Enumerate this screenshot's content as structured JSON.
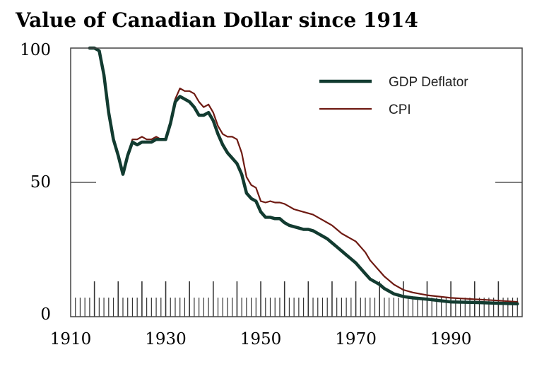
{
  "chart_data": {
    "type": "line",
    "title": "Value of Canadian Dollar since 1914",
    "xlabel": "",
    "ylabel": "",
    "xlim": [
      1910,
      2005
    ],
    "ylim": [
      0,
      100
    ],
    "x_ticks": [
      1910,
      1930,
      1950,
      1970,
      1990
    ],
    "y_ticks": [
      0,
      50,
      100
    ],
    "grid": false,
    "legend_position": "top-right",
    "series": [
      {
        "name": "GDP Deflator",
        "color": "#123b30",
        "points": [
          [
            1914,
            100
          ],
          [
            1915,
            100
          ],
          [
            1916,
            99
          ],
          [
            1917,
            90
          ],
          [
            1918,
            76
          ],
          [
            1919,
            66
          ],
          [
            1920,
            60
          ],
          [
            1921,
            53
          ],
          [
            1922,
            60
          ],
          [
            1923,
            65
          ],
          [
            1924,
            64
          ],
          [
            1925,
            65
          ],
          [
            1926,
            65
          ],
          [
            1927,
            65
          ],
          [
            1928,
            66
          ],
          [
            1929,
            66
          ],
          [
            1930,
            66
          ],
          [
            1931,
            72
          ],
          [
            1932,
            80
          ],
          [
            1933,
            82
          ],
          [
            1934,
            81
          ],
          [
            1935,
            80
          ],
          [
            1936,
            78
          ],
          [
            1937,
            75
          ],
          [
            1938,
            75
          ],
          [
            1939,
            76
          ],
          [
            1940,
            73
          ],
          [
            1941,
            68
          ],
          [
            1942,
            64
          ],
          [
            1943,
            61
          ],
          [
            1944,
            59
          ],
          [
            1945,
            57
          ],
          [
            1946,
            53
          ],
          [
            1947,
            46
          ],
          [
            1948,
            44
          ],
          [
            1949,
            43
          ],
          [
            1950,
            39
          ],
          [
            1951,
            37
          ],
          [
            1952,
            37
          ],
          [
            1953,
            36.5
          ],
          [
            1954,
            36.5
          ],
          [
            1955,
            35
          ],
          [
            1956,
            34
          ],
          [
            1957,
            33.5
          ],
          [
            1958,
            33
          ],
          [
            1959,
            32.5
          ],
          [
            1960,
            32.5
          ],
          [
            1961,
            32
          ],
          [
            1962,
            31
          ],
          [
            1963,
            30
          ],
          [
            1964,
            29
          ],
          [
            1965,
            27.5
          ],
          [
            1966,
            26
          ],
          [
            1967,
            24.5
          ],
          [
            1968,
            23
          ],
          [
            1969,
            21.5
          ],
          [
            1970,
            20
          ],
          [
            1971,
            18
          ],
          [
            1972,
            16
          ],
          [
            1973,
            14
          ],
          [
            1974,
            13
          ],
          [
            1975,
            12
          ],
          [
            1976,
            10.5
          ],
          [
            1977,
            9.5
          ],
          [
            1978,
            8.5
          ],
          [
            1979,
            8
          ],
          [
            1980,
            7.5
          ],
          [
            1982,
            7
          ],
          [
            1985,
            6.5
          ],
          [
            1990,
            5.5
          ],
          [
            1995,
            5.3
          ],
          [
            2000,
            5
          ],
          [
            2004,
            4.8
          ]
        ]
      },
      {
        "name": "CPI",
        "color": "#6e1a12",
        "points": [
          [
            1914,
            100
          ],
          [
            1915,
            100
          ],
          [
            1916,
            99
          ],
          [
            1917,
            90
          ],
          [
            1918,
            76
          ],
          [
            1919,
            66
          ],
          [
            1920,
            60
          ],
          [
            1921,
            53
          ],
          [
            1922,
            60
          ],
          [
            1923,
            66
          ],
          [
            1924,
            66
          ],
          [
            1925,
            67
          ],
          [
            1926,
            66
          ],
          [
            1927,
            66
          ],
          [
            1928,
            67
          ],
          [
            1929,
            66
          ],
          [
            1930,
            66
          ],
          [
            1931,
            72
          ],
          [
            1932,
            81
          ],
          [
            1933,
            85
          ],
          [
            1934,
            84
          ],
          [
            1935,
            84
          ],
          [
            1936,
            83
          ],
          [
            1937,
            80
          ],
          [
            1938,
            78
          ],
          [
            1939,
            79
          ],
          [
            1940,
            76
          ],
          [
            1941,
            71
          ],
          [
            1942,
            68
          ],
          [
            1943,
            67
          ],
          [
            1944,
            67
          ],
          [
            1945,
            66
          ],
          [
            1946,
            61
          ],
          [
            1947,
            52
          ],
          [
            1948,
            49
          ],
          [
            1949,
            48
          ],
          [
            1950,
            43
          ],
          [
            1951,
            42.5
          ],
          [
            1952,
            43
          ],
          [
            1953,
            42.5
          ],
          [
            1954,
            42.5
          ],
          [
            1955,
            42
          ],
          [
            1956,
            41
          ],
          [
            1957,
            40
          ],
          [
            1958,
            39.5
          ],
          [
            1959,
            39
          ],
          [
            1960,
            38.5
          ],
          [
            1961,
            38
          ],
          [
            1962,
            37
          ],
          [
            1963,
            36
          ],
          [
            1964,
            35
          ],
          [
            1965,
            34
          ],
          [
            1966,
            32.5
          ],
          [
            1967,
            31
          ],
          [
            1968,
            30
          ],
          [
            1969,
            29
          ],
          [
            1970,
            28
          ],
          [
            1971,
            26
          ],
          [
            1972,
            24
          ],
          [
            1973,
            21
          ],
          [
            1974,
            19
          ],
          [
            1975,
            17
          ],
          [
            1976,
            15
          ],
          [
            1977,
            13.5
          ],
          [
            1978,
            12
          ],
          [
            1979,
            11
          ],
          [
            1980,
            10
          ],
          [
            1982,
            9
          ],
          [
            1985,
            8
          ],
          [
            1990,
            7
          ],
          [
            1995,
            6.5
          ],
          [
            2000,
            6
          ],
          [
            2004,
            5.5
          ]
        ]
      }
    ]
  }
}
